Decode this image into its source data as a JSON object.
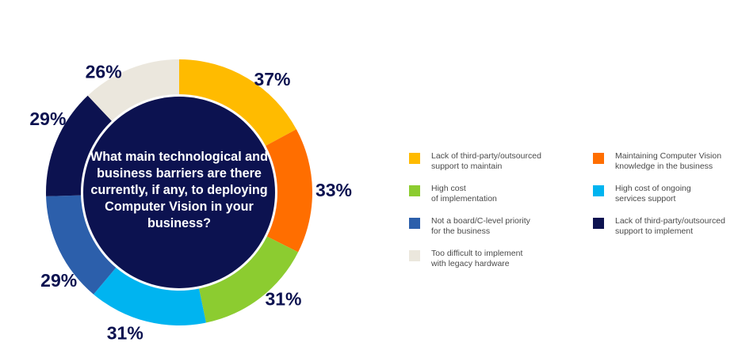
{
  "chart_data": {
    "type": "pie",
    "title": "What main technological and business barriers are there currently, if any, to deploying Computer Vision in your business?",
    "slices": [
      {
        "label": "Lack of third-party/outsourced support to maintain",
        "value": 37,
        "value_label": "37%",
        "color": "#ffbb00"
      },
      {
        "label": "Maintaining Computer Vision knowledge in the business",
        "value": 33,
        "value_label": "33%",
        "color": "#ff6e00"
      },
      {
        "label": "High cost of implementation",
        "value": 31,
        "value_label": "31%",
        "color": "#8ccc30"
      },
      {
        "label": "High cost of ongoing services support",
        "value": 31,
        "value_label": "31%",
        "color": "#00b4f0"
      },
      {
        "label": "Not a board/C-level priority for the business",
        "value": 29,
        "value_label": "29%",
        "color": "#2c5fab"
      },
      {
        "label": "Lack of third-party/outsourced support to implement",
        "value": 29,
        "value_label": "29%",
        "color": "#0c1250"
      },
      {
        "label": "Too difficult to implement with legacy hardware",
        "value": 26,
        "value_label": "26%",
        "color": "#ebe7dd"
      }
    ],
    "legend": {
      "placement": "right",
      "items": [
        {
          "text": "Lack of third-party/outsourced\nsupport to maintain",
          "color": "#ffbb00"
        },
        {
          "text": "Maintaining Computer Vision\nknowledge in the business",
          "color": "#ff6e00"
        },
        {
          "text": "High cost\nof implementation",
          "color": "#8ccc30"
        },
        {
          "text": "High cost of ongoing\nservices support",
          "color": "#00b4f0"
        },
        {
          "text": "Not a board/C-level priority\nfor the business",
          "color": "#2c5fab"
        },
        {
          "text": "Lack of third-party/outsourced\nsupport to implement",
          "color": "#0c1250"
        },
        {
          "text": "Too difficult to implement\nwith legacy hardware",
          "color": "#ebe7dd"
        }
      ]
    },
    "center_color": "#0c1250"
  }
}
